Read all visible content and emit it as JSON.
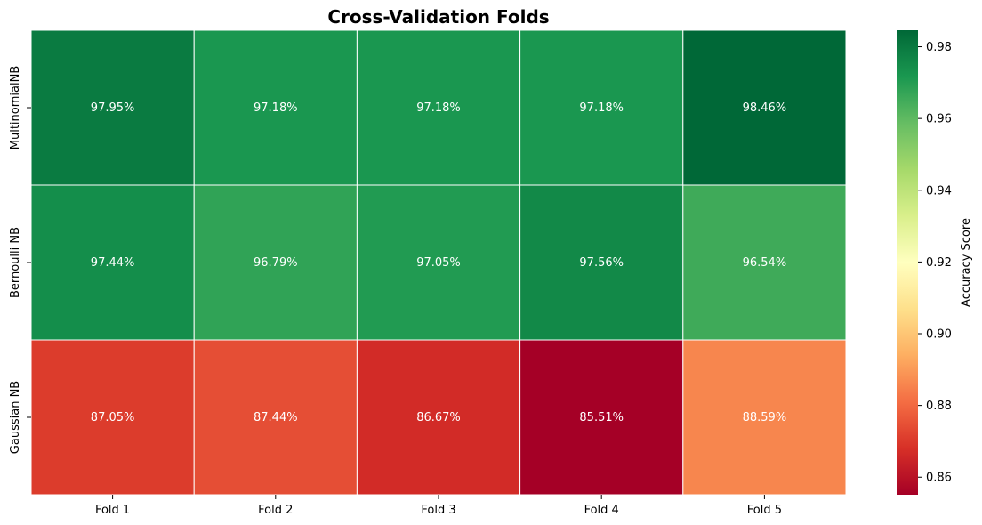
{
  "chart_data": {
    "type": "heatmap",
    "title": "Cross-Validation Folds",
    "xlabel": "",
    "ylabel": "",
    "x_categories": [
      "Fold 1",
      "Fold 2",
      "Fold 3",
      "Fold 4",
      "Fold 5"
    ],
    "y_categories": [
      "MultinomialNB",
      "Bernoulli NB",
      "Gaussian NB"
    ],
    "values": [
      [
        0.9795,
        0.9718,
        0.9718,
        0.9718,
        0.9846
      ],
      [
        0.9744,
        0.9679,
        0.9705,
        0.9756,
        0.9654
      ],
      [
        0.8705,
        0.8744,
        0.8667,
        0.8551,
        0.8859
      ]
    ],
    "cell_labels": [
      [
        "97.95%",
        "97.18%",
        "97.18%",
        "97.18%",
        "98.46%"
      ],
      [
        "97.44%",
        "96.79%",
        "97.05%",
        "97.56%",
        "96.54%"
      ],
      [
        "87.05%",
        "87.44%",
        "86.67%",
        "85.51%",
        "88.59%"
      ]
    ],
    "colorscale": "RdYlGn",
    "vmin": 0.8551,
    "vmax": 0.9846,
    "colorbar": {
      "label": "Accuracy Score",
      "ticks": [
        0.86,
        0.88,
        0.9,
        0.92,
        0.94,
        0.96,
        0.98
      ],
      "tick_labels": [
        "0.86",
        "0.88",
        "0.90",
        "0.92",
        "0.94",
        "0.96",
        "0.98"
      ]
    },
    "grid": false,
    "cell_separator_color": "#ffffff"
  }
}
